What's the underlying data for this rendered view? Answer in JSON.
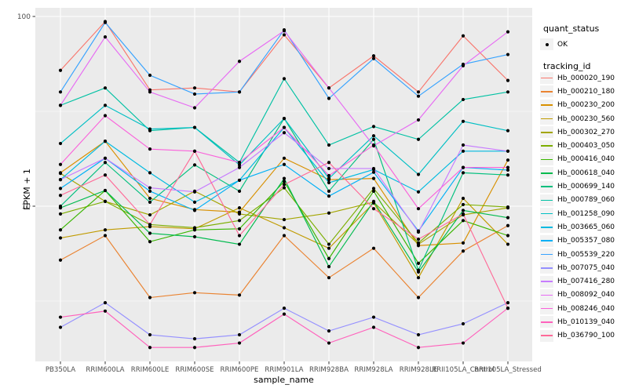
{
  "chart_data": {
    "type": "line",
    "title": "",
    "xlabel": "sample_name",
    "ylabel": "FPKM + 1",
    "y_scale": "log10",
    "y_ticks": [
      100,
      10
    ],
    "y_minor": [
      31.62,
      3.162
    ],
    "ylim": [
      1.5,
      111
    ],
    "grid": true,
    "panel_bg": "#EBEBEB",
    "grid_color": "#FFFFFF",
    "point_color": "#000000",
    "axis_text_color": "#4D4D4D",
    "legend_position": "right",
    "categories": [
      "PB350LA",
      "RRIM600LA",
      "RRIM600LE",
      "RRIM600SE",
      "RRIM600PE",
      "RRIM901LA",
      "RRIM928BA",
      "RRIM928LA",
      "RRIM928LE",
      "RRII105LA_Control",
      "RRII105LA_Stressed"
    ],
    "legend": {
      "quant_title": "quant_status",
      "quant_value": "OK",
      "series_title": "tracking_id"
    },
    "series": [
      {
        "name": "Hb_000020_190",
        "color": "#F8766D",
        "values": [
          52,
          94,
          41,
          42,
          40,
          80,
          42,
          62,
          40,
          79,
          46
        ]
      },
      {
        "name": "Hb_000210_180",
        "color": "#EA8331",
        "values": [
          5.2,
          7.0,
          3.3,
          3.5,
          3.4,
          7.0,
          4.2,
          6.0,
          3.3,
          5.8,
          7.9
        ]
      },
      {
        "name": "Hb_000230_200",
        "color": "#D89000",
        "values": [
          15.0,
          22,
          11,
          9.6,
          9.3,
          17.9,
          13.8,
          14.0,
          6.2,
          6.4,
          17.5
        ]
      },
      {
        "name": "Hb_000230_560",
        "color": "#C09B00",
        "values": [
          6.8,
          7.5,
          7.8,
          7.6,
          9.8,
          7.7,
          6.0,
          10.4,
          4.2,
          11.0,
          6.3
        ]
      },
      {
        "name": "Hb_000302_270",
        "color": "#A3A500",
        "values": [
          14.9,
          10.6,
          9.0,
          12.0,
          9.1,
          8.5,
          9.2,
          10.5,
          6.3,
          9.0,
          9.8
        ]
      },
      {
        "name": "Hb_000403_050",
        "color": "#7CAE00",
        "values": [
          9.1,
          10.6,
          8.0,
          7.7,
          8.4,
          12.5,
          6.3,
          12.4,
          6.4,
          10.2,
          9.9
        ]
      },
      {
        "name": "Hb_000416_040",
        "color": "#39B600",
        "values": [
          7.5,
          12.1,
          6.5,
          7.5,
          7.6,
          13.5,
          5.3,
          12.0,
          5.0,
          8.4,
          7.0
        ]
      },
      {
        "name": "Hb_000618_040",
        "color": "#00BB4E",
        "values": [
          9.8,
          12.1,
          7.2,
          6.9,
          6.3,
          14.0,
          4.8,
          10.6,
          4.5,
          9.5,
          8.7
        ]
      },
      {
        "name": "Hb_000699_140",
        "color": "#00BF7D",
        "values": [
          10.0,
          17.0,
          10.5,
          16.5,
          12.0,
          29.0,
          12.0,
          22.5,
          4.6,
          15.0,
          14.6
        ]
      },
      {
        "name": "Hb_000789_060",
        "color": "#00C1A3",
        "values": [
          34,
          42,
          25,
          26,
          17.0,
          47,
          21,
          26.3,
          22.5,
          36.5,
          40
        ]
      },
      {
        "name": "Hb_001258_090",
        "color": "#00BFC4",
        "values": [
          21.4,
          34,
          25.5,
          26,
          16.5,
          29,
          14.0,
          23.5,
          14.7,
          28,
          25
        ]
      },
      {
        "name": "Hb_003665_060",
        "color": "#00BAE0",
        "values": [
          13.8,
          22,
          15,
          10.5,
          13.7,
          26,
          13.3,
          15.6,
          11.9,
          19.5,
          19.5
        ]
      },
      {
        "name": "Hb_005357_080",
        "color": "#00B0F6",
        "values": [
          12.4,
          17.9,
          12,
          9.5,
          13.7,
          16.6,
          11.3,
          15.1,
          7.4,
          16.0,
          15.5
        ]
      },
      {
        "name": "Hb_005539_220",
        "color": "#35A2FF",
        "values": [
          40,
          93,
          49,
          39,
          40,
          85,
          37,
          60,
          38,
          56,
          63
        ]
      },
      {
        "name": "Hb_007075_040",
        "color": "#9590FF",
        "values": [
          2.3,
          3.1,
          2.1,
          2.0,
          2.1,
          2.9,
          2.2,
          2.6,
          2.1,
          2.4,
          3.1
        ]
      },
      {
        "name": "Hb_007416_280",
        "color": "#C77CFF",
        "values": [
          13.8,
          17.9,
          12.5,
          11.9,
          16.0,
          24.4,
          15.8,
          15.8,
          7.3,
          21.0,
          19.5
        ]
      },
      {
        "name": "Hb_008092_040",
        "color": "#E76BF3",
        "values": [
          34,
          78,
          40,
          33,
          58,
          84,
          42,
          20.8,
          28.5,
          55,
          83
        ]
      },
      {
        "name": "Hb_008246_040",
        "color": "#FA62DB",
        "values": [
          16.6,
          30,
          20,
          19.5,
          17,
          26,
          14.5,
          21,
          9.7,
          16,
          16
        ]
      },
      {
        "name": "Hb_010139_040",
        "color": "#FF62BC",
        "values": [
          2.6,
          2.8,
          1.8,
          1.8,
          1.9,
          2.7,
          1.9,
          2.3,
          1.8,
          1.9,
          2.9
        ]
      },
      {
        "name": "Hb_036790_100",
        "color": "#FF6A98",
        "values": [
          11.4,
          14.6,
          8.0,
          19.5,
          7.0,
          13.0,
          17.0,
          9.7,
          6.7,
          9.1,
          2.9
        ]
      }
    ]
  }
}
